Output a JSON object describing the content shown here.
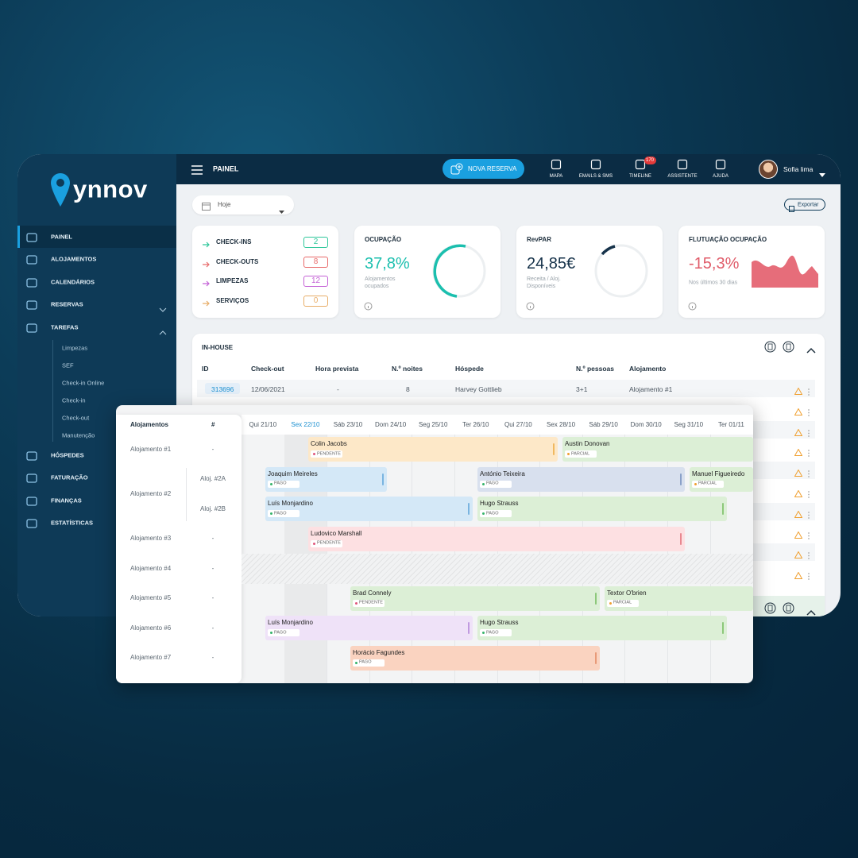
{
  "logo": "ynnov",
  "sidebar": {
    "items": [
      "PAINEL",
      "ALOJAMENTOS",
      "CALENDÁRIOS",
      "RESERVAS",
      "TAREFAS",
      "HÓSPEDES",
      "FATURAÇÃO",
      "FINANÇAS",
      "ESTATÍSTICAS"
    ],
    "subitems": [
      "Limpezas",
      "SEF",
      "Check-in Online",
      "Check-in",
      "Check-out",
      "Manutenção"
    ]
  },
  "topbar": {
    "title": "PAINEL",
    "new_booking": "NOVA RESERVA",
    "nav": [
      "MAPA",
      "EMAILS & SMS",
      "TIMELINE",
      "ASSISTENTE",
      "AJUDA"
    ],
    "timeline_badge": "170",
    "user": "Sofia lima"
  },
  "filter": "Hoje",
  "export": "Exportar",
  "tasks": [
    {
      "label": "CHECK-INS",
      "count": 2
    },
    {
      "label": "CHECK-OUTS",
      "count": 8
    },
    {
      "label": "LIMPEZAS",
      "count": 12
    },
    {
      "label": "SERVIÇOS",
      "count": 0
    }
  ],
  "kpis": [
    {
      "title": "OCUPAÇÃO",
      "value": "37,8%",
      "caption": "Alojamentos ocupados"
    },
    {
      "title": "RevPAR",
      "value": "24,85€",
      "caption": "Receita / Aloj. Disponíveis"
    },
    {
      "title": "FLUTUAÇÃO OCUPAÇÃO",
      "value": "-15,3%",
      "caption": "Nos últimos 30 dias"
    }
  ],
  "in_house": {
    "title": "IN-HOUSE",
    "columns": [
      "ID",
      "Check-out",
      "Hora prevista",
      "N.º noites",
      "Hóspede",
      "N.º pessoas",
      "Alojamento"
    ],
    "rows": [
      [
        "313696",
        "12/06/2021",
        "-",
        8,
        "Harvey Gottlieb",
        "3+1",
        "Alojamento #1"
      ]
    ]
  },
  "timeline": {
    "headers": [
      "Alojamentos",
      "#"
    ],
    "dates": [
      "Qui 21/10",
      "Sex 22/10",
      "Sáb 23/10",
      "Dom 24/10",
      "Seg 25/10",
      "Ter 26/10",
      "Qui 27/10",
      "Sex 28/10",
      "Sáb 29/10",
      "Dom 30/10",
      "Seg 31/10",
      "Ter 01/11"
    ],
    "properties": [
      {
        "name": "Alojamento #1",
        "units": [
          "-"
        ]
      },
      {
        "name": "Alojamento #2",
        "units": [
          "Aloj. #2A",
          "Aloj. #2B"
        ]
      },
      {
        "name": "Alojamento #3",
        "units": [
          "-"
        ]
      },
      {
        "name": "Alojamento #4",
        "units": [
          "-"
        ]
      },
      {
        "name": "Alojamento #5",
        "units": [
          "-"
        ]
      },
      {
        "name": "Alojamento #6",
        "units": [
          "-"
        ]
      },
      {
        "name": "Alojamento #7",
        "units": [
          "-"
        ]
      }
    ],
    "bookings": [
      {
        "guest": "Colin Jacobs",
        "status": "PENDENTE"
      },
      {
        "guest": "Austin Donovan",
        "status": "PARCIAL"
      },
      {
        "guest": "Joaquim Meireles",
        "status": "PAGO"
      },
      {
        "guest": "António Teixeira",
        "status": "PAGO"
      },
      {
        "guest": "Manuel Figueiredo",
        "status": "PARCIAL"
      },
      {
        "guest": "Luís Monjardino",
        "status": "PAGO"
      },
      {
        "guest": "Hugo Strauss",
        "status": "PAGO"
      },
      {
        "guest": "Ludovico Marshall",
        "status": "PENDENTE"
      },
      {
        "guest": "Brad Connely",
        "status": "PENDENTE"
      },
      {
        "guest": "Textor O'brien",
        "status": "PARCIAL"
      },
      {
        "guest": "Luís Monjardino",
        "status": "PAGO"
      },
      {
        "guest": "Hugo Strauss",
        "status": "PAGO"
      },
      {
        "guest": "Horácio Fagundes",
        "status": "PAGO"
      }
    ]
  }
}
